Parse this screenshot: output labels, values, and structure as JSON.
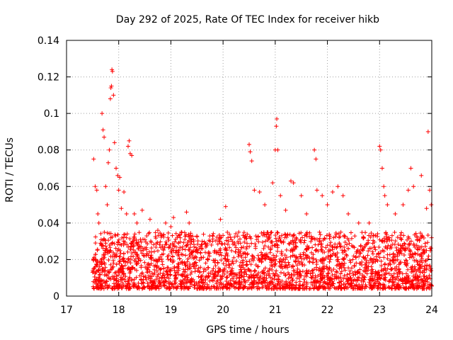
{
  "chart_data": {
    "type": "scatter",
    "title": "Day 292 of 2025, Rate Of TEC Index for receiver hikb",
    "xlabel": "GPS time / hours",
    "ylabel": "ROTI / TECUs",
    "xlim": [
      17,
      24
    ],
    "ylim": [
      0,
      0.14
    ],
    "x_ticks": [
      17,
      18,
      19,
      20,
      21,
      22,
      23,
      24
    ],
    "x_tick_labels": [
      "17",
      "18",
      "19",
      "20",
      "21",
      "22",
      "23",
      "24"
    ],
    "y_ticks": [
      0,
      0.02,
      0.04,
      0.06,
      0.08,
      0.1,
      0.12,
      0.14
    ],
    "y_tick_labels": [
      "0",
      "0.02",
      "0.04",
      "0.06",
      "0.08",
      "0.1",
      "0.12",
      "0.14"
    ],
    "grid": true,
    "marker": "+",
    "color": "#ff0000",
    "series": [
      {
        "name": "ROTI",
        "points": [
          [
            17.52,
            0.075
          ],
          [
            17.55,
            0.06
          ],
          [
            17.58,
            0.058
          ],
          [
            17.6,
            0.045
          ],
          [
            17.62,
            0.04
          ],
          [
            17.68,
            0.1
          ],
          [
            17.7,
            0.091
          ],
          [
            17.72,
            0.087
          ],
          [
            17.75,
            0.06
          ],
          [
            17.78,
            0.05
          ],
          [
            17.8,
            0.073
          ],
          [
            17.82,
            0.08
          ],
          [
            17.84,
            0.108
          ],
          [
            17.85,
            0.114
          ],
          [
            17.86,
            0.115
          ],
          [
            17.87,
            0.124
          ],
          [
            17.88,
            0.123
          ],
          [
            17.9,
            0.11
          ],
          [
            17.92,
            0.084
          ],
          [
            17.95,
            0.07
          ],
          [
            17.98,
            0.066
          ],
          [
            18.0,
            0.058
          ],
          [
            18.02,
            0.065
          ],
          [
            18.05,
            0.048
          ],
          [
            18.1,
            0.057
          ],
          [
            18.15,
            0.045
          ],
          [
            18.18,
            0.082
          ],
          [
            18.2,
            0.085
          ],
          [
            18.22,
            0.078
          ],
          [
            18.25,
            0.077
          ],
          [
            18.3,
            0.045
          ],
          [
            18.35,
            0.04
          ],
          [
            18.45,
            0.047
          ],
          [
            18.6,
            0.042
          ],
          [
            18.75,
            0.036
          ],
          [
            18.9,
            0.04
          ],
          [
            19.0,
            0.038
          ],
          [
            19.05,
            0.043
          ],
          [
            19.2,
            0.035
          ],
          [
            19.3,
            0.046
          ],
          [
            19.35,
            0.04
          ],
          [
            19.6,
            0.03
          ],
          [
            19.8,
            0.03
          ],
          [
            19.95,
            0.042
          ],
          [
            20.05,
            0.049
          ],
          [
            20.3,
            0.035
          ],
          [
            20.5,
            0.083
          ],
          [
            20.52,
            0.079
          ],
          [
            20.55,
            0.074
          ],
          [
            20.6,
            0.058
          ],
          [
            20.7,
            0.057
          ],
          [
            20.8,
            0.05
          ],
          [
            20.95,
            0.062
          ],
          [
            21.0,
            0.08
          ],
          [
            21.02,
            0.093
          ],
          [
            21.03,
            0.097
          ],
          [
            21.05,
            0.08
          ],
          [
            21.1,
            0.055
          ],
          [
            21.2,
            0.047
          ],
          [
            21.3,
            0.063
          ],
          [
            21.35,
            0.062
          ],
          [
            21.5,
            0.055
          ],
          [
            21.6,
            0.045
          ],
          [
            21.75,
            0.08
          ],
          [
            21.78,
            0.075
          ],
          [
            21.8,
            0.058
          ],
          [
            21.9,
            0.055
          ],
          [
            22.0,
            0.05
          ],
          [
            22.1,
            0.057
          ],
          [
            22.2,
            0.06
          ],
          [
            22.3,
            0.055
          ],
          [
            22.4,
            0.045
          ],
          [
            22.6,
            0.04
          ],
          [
            22.8,
            0.04
          ],
          [
            23.0,
            0.082
          ],
          [
            23.02,
            0.08
          ],
          [
            23.05,
            0.07
          ],
          [
            23.08,
            0.06
          ],
          [
            23.1,
            0.055
          ],
          [
            23.15,
            0.05
          ],
          [
            23.3,
            0.045
          ],
          [
            23.45,
            0.05
          ],
          [
            23.55,
            0.058
          ],
          [
            23.6,
            0.07
          ],
          [
            23.65,
            0.06
          ],
          [
            23.8,
            0.066
          ],
          [
            23.9,
            0.048
          ],
          [
            23.93,
            0.09
          ],
          [
            23.96,
            0.058
          ],
          [
            23.99,
            0.05
          ]
        ],
        "noise_note": "dense background band approx. 0.005–0.035 across 17.5–24 h rendered procedurally"
      }
    ],
    "background_band": {
      "x_start": 17.5,
      "x_end": 24.0,
      "y_low": 0.004,
      "y_high": 0.035,
      "count": 2600
    }
  }
}
